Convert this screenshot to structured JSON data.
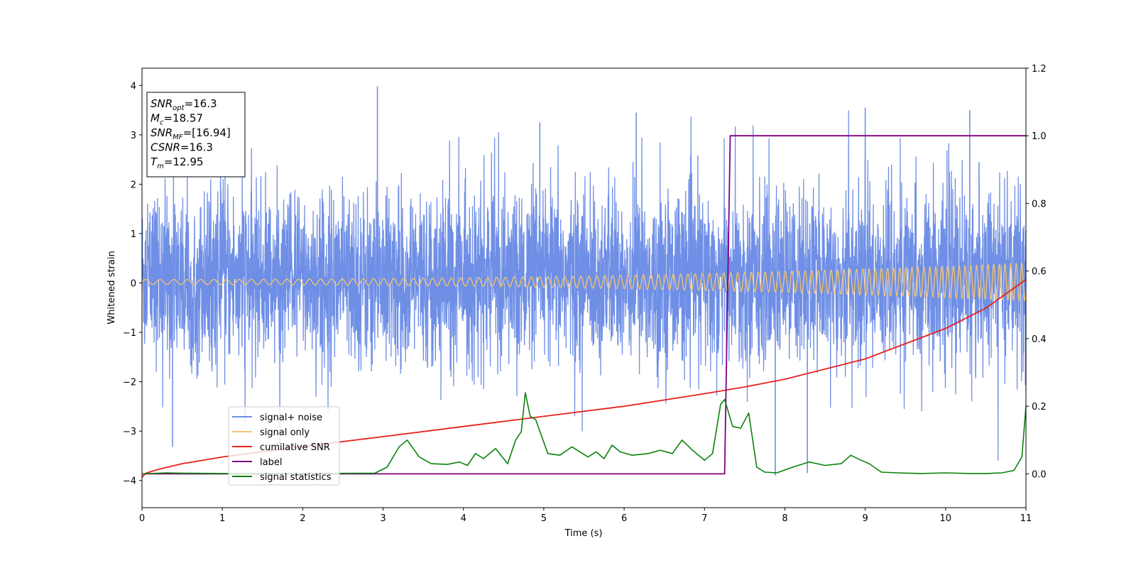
{
  "chart_data": {
    "type": "line",
    "xlabel": "Time (s)",
    "ylabel": "Whitened strain",
    "xlim": [
      0,
      11
    ],
    "ylim": [
      -4.55,
      4.35
    ],
    "y2lim": [
      -0.1,
      1.2
    ],
    "x_ticks": [
      0,
      1,
      2,
      3,
      4,
      5,
      6,
      7,
      8,
      9,
      10,
      11
    ],
    "y_ticks": [
      -4,
      -3,
      -2,
      -1,
      0,
      1,
      2,
      3,
      4
    ],
    "y2_ticks": [
      0.0,
      0.2,
      0.4,
      0.6,
      0.8,
      1.0,
      1.2
    ],
    "grid": false,
    "legend_position": "lower-left",
    "info_box": [
      {
        "name": "SNR",
        "sub": "opt",
        "value": "=16.3"
      },
      {
        "name": "M",
        "sub": "c",
        "value": "=18.57"
      },
      {
        "name": "SNR",
        "sub": "MF",
        "value": "=[16.94]"
      },
      {
        "name": "CSNR",
        "sub": "",
        "value": "=16.3"
      },
      {
        "name": "T",
        "sub": "m",
        "value": "=12.95"
      }
    ],
    "series": [
      {
        "name": "signal+ noise",
        "color": "#6f8fe6",
        "axis": "left",
        "kind": "noisy strain (approx. |amplitude| up to ~2.5, spikes to ~4)",
        "peaks": [
          {
            "x": 2.93,
            "y": 3.98
          },
          {
            "x": 0.38,
            "y": -3.32
          },
          {
            "x": 7.88,
            "y": -3.9
          },
          {
            "x": 8.28,
            "y": -3.85
          },
          {
            "x": 9.0,
            "y": 3.55
          },
          {
            "x": 10.3,
            "y": 3.5
          },
          {
            "x": 6.15,
            "y": 3.45
          },
          {
            "x": 4.95,
            "y": 3.25
          }
        ]
      },
      {
        "name": "signal only",
        "color": "#f5c56e",
        "axis": "left",
        "kind": "chirp",
        "amp_start": 0.05,
        "amp_end": 0.38,
        "cycles": 110
      },
      {
        "name": "cumilative SNR",
        "color": "#e8211d",
        "axis": "right",
        "x": [
          0,
          0.05,
          0.2,
          0.5,
          1,
          2,
          3,
          4,
          5,
          6,
          7,
          7.5,
          8,
          9,
          10,
          10.5,
          11
        ],
        "y": [
          -0.01,
          0.002,
          0.013,
          0.03,
          0.05,
          0.081,
          0.11,
          0.14,
          0.17,
          0.2,
          0.237,
          0.257,
          0.28,
          0.34,
          0.43,
          0.49,
          0.575
        ]
      },
      {
        "name": "label",
        "color": "#800080",
        "axis": "right",
        "x": [
          0,
          7.25,
          7.32,
          11
        ],
        "y": [
          0.0,
          0.0,
          1.0,
          1.0
        ]
      },
      {
        "name": "signal statistics",
        "color": "#0a820a",
        "axis": "right",
        "x": [
          0,
          0.3,
          0.5,
          1,
          2,
          2.9,
          3.05,
          3.2,
          3.3,
          3.45,
          3.6,
          3.8,
          3.95,
          4.05,
          4.15,
          4.25,
          4.4,
          4.55,
          4.65,
          4.72,
          4.77,
          4.83,
          4.9,
          5.05,
          5.2,
          5.35,
          5.45,
          5.55,
          5.65,
          5.75,
          5.85,
          5.95,
          6.1,
          6.3,
          6.45,
          6.6,
          6.72,
          6.85,
          7.0,
          7.1,
          7.2,
          7.25,
          7.35,
          7.45,
          7.55,
          7.65,
          7.75,
          7.9,
          8.1,
          8.3,
          8.5,
          8.7,
          8.82,
          8.95,
          9.05,
          9.2,
          9.4,
          9.7,
          10.0,
          10.3,
          10.5,
          10.7,
          10.85,
          10.95,
          11.0
        ],
        "y": [
          0.0,
          0.003,
          0.002,
          0.001,
          0.001,
          0.002,
          0.02,
          0.08,
          0.1,
          0.05,
          0.03,
          0.028,
          0.035,
          0.025,
          0.06,
          0.045,
          0.075,
          0.03,
          0.1,
          0.125,
          0.24,
          0.17,
          0.16,
          0.06,
          0.055,
          0.08,
          0.065,
          0.05,
          0.065,
          0.045,
          0.085,
          0.065,
          0.055,
          0.06,
          0.07,
          0.06,
          0.1,
          0.07,
          0.04,
          0.06,
          0.205,
          0.22,
          0.14,
          0.135,
          0.18,
          0.02,
          0.005,
          0.003,
          0.02,
          0.035,
          0.025,
          0.03,
          0.055,
          0.04,
          0.03,
          0.005,
          0.003,
          0.001,
          0.003,
          0.001,
          0.001,
          0.003,
          0.01,
          0.05,
          0.2
        ]
      }
    ]
  }
}
